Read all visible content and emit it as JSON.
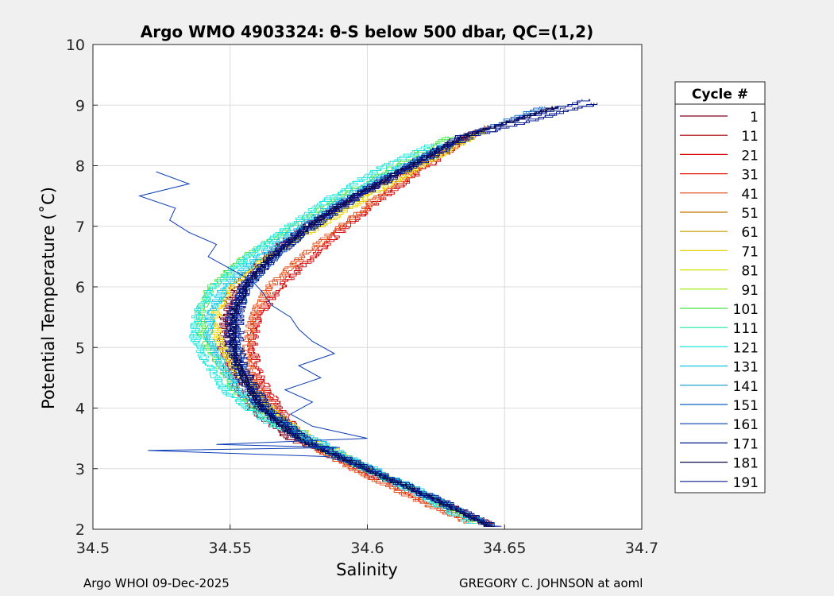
{
  "chart_data": {
    "type": "line",
    "title": "Argo WMO 4903324: θ-S below 500 dbar,  QC=(1,2)",
    "xlabel": "Salinity",
    "ylabel": "Potential Temperature (˚C)",
    "xlim": [
      34.5,
      34.7
    ],
    "ylim": [
      2,
      10
    ],
    "xticks": [
      "34.5",
      "34.55",
      "34.6",
      "34.65",
      "34.7"
    ],
    "yticks": [
      "2",
      "3",
      "4",
      "5",
      "6",
      "7",
      "8",
      "9",
      "10"
    ],
    "grid": true,
    "legend": {
      "title": "Cycle #",
      "position": "right",
      "entries": [
        {
          "label": "1",
          "color": "#80001a"
        },
        {
          "label": "11",
          "color": "#a80000"
        },
        {
          "label": "21",
          "color": "#d40000"
        },
        {
          "label": "31",
          "color": "#e61e10"
        },
        {
          "label": "41",
          "color": "#e64a14"
        },
        {
          "label": "51",
          "color": "#c87800"
        },
        {
          "label": "61",
          "color": "#c8a000"
        },
        {
          "label": "71",
          "color": "#e6d200"
        },
        {
          "label": "81",
          "color": "#d2e600"
        },
        {
          "label": "91",
          "color": "#9be600"
        },
        {
          "label": "101",
          "color": "#46e646"
        },
        {
          "label": "111",
          "color": "#1ee6a0"
        },
        {
          "label": "121",
          "color": "#1ee6dc"
        },
        {
          "label": "131",
          "color": "#14c8e6"
        },
        {
          "label": "141",
          "color": "#0a96c8"
        },
        {
          "label": "151",
          "color": "#0a64c8"
        },
        {
          "label": "161",
          "color": "#0a3cb4"
        },
        {
          "label": "171",
          "color": "#00148c"
        },
        {
          "label": "181",
          "color": "#0a0a50"
        },
        {
          "label": "191",
          "color": "#0a1e96"
        }
      ]
    },
    "mean_profile": {
      "theta": [
        2.05,
        2.5,
        3.0,
        3.5,
        4.0,
        4.5,
        5.0,
        5.5,
        6.0,
        6.5,
        7.0,
        7.5,
        8.0,
        8.5,
        9.0
      ],
      "salinity": [
        34.645,
        34.625,
        34.6,
        34.575,
        34.562,
        34.555,
        34.551,
        34.551,
        34.555,
        34.565,
        34.578,
        34.595,
        34.615,
        34.635,
        34.67
      ]
    },
    "series": [
      {
        "name": "1",
        "theta": [
          2.1,
          2.5,
          3.0,
          3.5,
          4.0,
          4.5,
          5.0,
          5.5,
          6.0,
          6.5,
          7.0,
          7.5,
          8.0,
          8.5
        ],
        "salinity": [
          34.645,
          34.625,
          34.598,
          34.572,
          34.558,
          34.551,
          34.547,
          34.548,
          34.551,
          34.562,
          34.577,
          34.596,
          34.617,
          34.637
        ]
      },
      {
        "name": "21",
        "theta": [
          2.1,
          2.5,
          3.0,
          3.5,
          4.0,
          4.5,
          5.0,
          5.5,
          6.0,
          6.5,
          7.0,
          7.5,
          8.0,
          8.6
        ],
        "salinity": [
          34.64,
          34.62,
          34.597,
          34.577,
          34.568,
          34.561,
          34.558,
          34.56,
          34.568,
          34.58,
          34.592,
          34.606,
          34.622,
          34.64
        ]
      },
      {
        "name": "41",
        "theta": [
          2.1,
          2.5,
          3.0,
          3.5,
          4.0,
          4.5,
          5.0,
          5.5,
          6.0,
          6.5,
          7.0,
          7.5,
          8.0,
          8.7
        ],
        "salinity": [
          34.638,
          34.618,
          34.595,
          34.575,
          34.565,
          34.558,
          34.556,
          34.558,
          34.564,
          34.576,
          34.59,
          34.604,
          34.62,
          34.645
        ]
      },
      {
        "name": "71",
        "theta": [
          2.1,
          2.6,
          3.2,
          3.8,
          4.3,
          4.8,
          5.2,
          5.6,
          6.0,
          6.5,
          7.0,
          7.5,
          8.0,
          8.6
        ],
        "salinity": [
          34.641,
          34.62,
          34.593,
          34.57,
          34.558,
          34.55,
          34.545,
          34.545,
          34.55,
          34.563,
          34.582,
          34.6,
          34.619,
          34.643
        ]
      },
      {
        "name": "101",
        "theta": [
          2.1,
          2.6,
          3.2,
          3.8,
          4.3,
          4.8,
          5.2,
          5.6,
          6.0,
          6.5,
          7.0,
          7.5,
          8.0,
          8.5
        ],
        "salinity": [
          34.642,
          34.62,
          34.59,
          34.565,
          34.552,
          34.545,
          34.54,
          34.539,
          34.543,
          34.555,
          34.572,
          34.59,
          34.61,
          34.63
        ]
      },
      {
        "name": "121",
        "theta": [
          2.1,
          2.6,
          3.2,
          3.8,
          4.3,
          4.8,
          5.2,
          5.6,
          6.0,
          6.5,
          7.0,
          7.5,
          8.0,
          8.4
        ],
        "salinity": [
          34.638,
          34.618,
          34.59,
          34.563,
          34.548,
          34.541,
          34.537,
          34.538,
          34.544,
          34.556,
          34.571,
          34.587,
          34.606,
          34.625
        ]
      },
      {
        "name": "131",
        "theta": [
          2.1,
          2.6,
          3.2,
          3.8,
          4.3,
          4.8,
          5.2,
          5.6,
          6.0,
          6.5,
          7.0,
          7.5,
          8.0,
          8.4
        ],
        "salinity": [
          34.644,
          34.622,
          34.594,
          34.568,
          34.553,
          34.546,
          34.542,
          34.543,
          34.548,
          34.56,
          34.575,
          34.592,
          34.612,
          34.63
        ]
      },
      {
        "name": "151",
        "theta": [
          2.05,
          2.5,
          3.0,
          3.5,
          4.0,
          4.5,
          5.0,
          5.5,
          6.0,
          6.5,
          7.0,
          7.5,
          8.0,
          8.5,
          9.0
        ],
        "salinity": [
          34.646,
          34.626,
          34.601,
          34.577,
          34.563,
          34.556,
          34.552,
          34.552,
          34.556,
          34.566,
          34.579,
          34.596,
          34.616,
          34.636,
          34.665
        ]
      },
      {
        "name": "171",
        "theta": [
          2.05,
          2.5,
          3.0,
          3.5,
          4.0,
          4.5,
          5.0,
          5.5,
          6.0,
          6.5,
          7.0,
          7.5,
          8.0,
          8.5,
          9.05
        ],
        "salinity": [
          34.647,
          34.627,
          34.602,
          34.578,
          34.564,
          34.557,
          34.553,
          34.553,
          34.556,
          34.566,
          34.58,
          34.597,
          34.617,
          34.638,
          34.684
        ]
      },
      {
        "name": "191",
        "theta": [
          2.05,
          2.5,
          3.0,
          3.5,
          4.0,
          4.5,
          5.0,
          5.5,
          6.0,
          6.5,
          7.0,
          7.5,
          8.0,
          8.5,
          9.1
        ],
        "salinity": [
          34.645,
          34.624,
          34.6,
          34.575,
          34.561,
          34.554,
          34.55,
          34.55,
          34.554,
          34.564,
          34.577,
          34.594,
          34.614,
          34.634,
          34.68
        ]
      }
    ],
    "anomalous_profile": {
      "name": "161",
      "theta": [
        7.9,
        7.7,
        7.5,
        7.3,
        7.1,
        6.9,
        6.7,
        6.5,
        6.3,
        6.1,
        5.9,
        5.7,
        5.5,
        5.3,
        5.1,
        4.9,
        4.7,
        4.5,
        4.3,
        4.1,
        3.9,
        3.7,
        3.5,
        3.4,
        3.35,
        3.3,
        3.2,
        3.0
      ],
      "salinity": [
        34.523,
        34.535,
        34.517,
        34.53,
        34.528,
        34.535,
        34.545,
        34.542,
        34.55,
        34.558,
        34.562,
        34.565,
        34.572,
        34.575,
        34.58,
        34.588,
        34.575,
        34.583,
        34.57,
        34.58,
        34.572,
        34.58,
        34.6,
        34.545,
        34.59,
        34.52,
        34.585,
        34.6
      ]
    }
  },
  "footer": {
    "left": "Argo WHOI 09-Dec-2025",
    "right": "GREGORY C. JOHNSON at aoml"
  }
}
